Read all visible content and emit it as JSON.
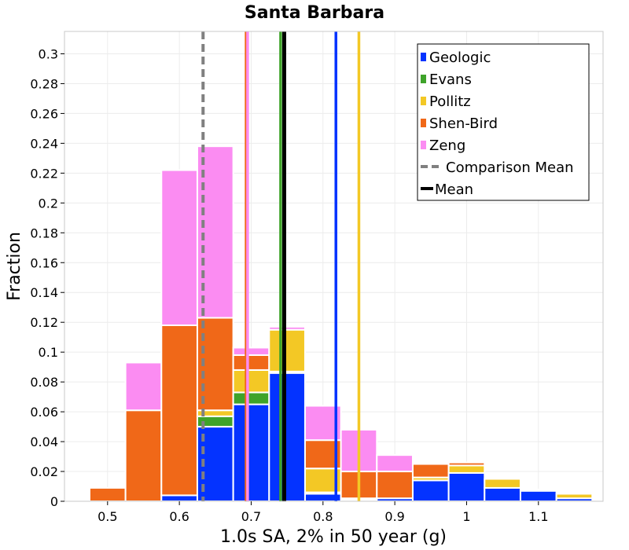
{
  "chart_data": {
    "type": "bar",
    "stacked": true,
    "title": "Santa Barbara",
    "xlabel": "1.0s SA, 2% in 50 year (g)",
    "ylabel": "Fraction",
    "xlim": [
      0.44,
      1.19
    ],
    "ylim": [
      0,
      0.315
    ],
    "x_ticks": [
      0.5,
      0.6,
      0.7,
      0.8,
      0.9,
      1.0,
      1.1
    ],
    "x_tick_labels": [
      "0.5",
      "0.6",
      "0.7",
      "0.8",
      "0.9",
      "1",
      "1.1"
    ],
    "y_ticks": [
      0,
      0.02,
      0.04,
      0.06,
      0.08,
      0.1,
      0.12,
      0.14,
      0.16,
      0.18,
      0.2,
      0.22,
      0.24,
      0.26,
      0.28,
      0.3
    ],
    "y_tick_labels": [
      "0",
      "0.02",
      "0.04",
      "0.06",
      "0.08",
      "0.1",
      "0.12",
      "0.14",
      "0.16",
      "0.18",
      "0.2",
      "0.22",
      "0.24",
      "0.26",
      "0.28",
      "0.3"
    ],
    "grid": true,
    "legend_position": "top-right",
    "bin_width": 0.05,
    "bins": [
      0.5,
      0.55,
      0.6,
      0.65,
      0.7,
      0.75,
      0.8,
      0.85,
      0.9,
      0.95,
      1.0,
      1.05,
      1.1,
      1.15
    ],
    "series": [
      {
        "name": "Geologic",
        "color": "#0433ff",
        "values": [
          0,
          0,
          0.004,
          0.05,
          0.065,
          0.086,
          0.005,
          0.001,
          0.002,
          0.014,
          0.019,
          0.009,
          0.007,
          0.002
        ]
      },
      {
        "name": "Evans",
        "color": "#3fa32a",
        "values": [
          0,
          0,
          0,
          0.007,
          0.008,
          0.001,
          0.001,
          0.001,
          0,
          0,
          0,
          0,
          0,
          0
        ]
      },
      {
        "name": "Pollitz",
        "color": "#f3c825",
        "values": [
          0,
          0,
          0,
          0.004,
          0.015,
          0.028,
          0.016,
          0,
          0,
          0.002,
          0.005,
          0.006,
          0,
          0.003
        ]
      },
      {
        "name": "Shen-Bird",
        "color": "#f06818",
        "values": [
          0.009,
          0.061,
          0.114,
          0.062,
          0.01,
          0,
          0.019,
          0.018,
          0.018,
          0.009,
          0.002,
          0,
          0.001,
          0
        ]
      },
      {
        "name": "Zeng",
        "color": "#fb8cf2",
        "values": [
          0,
          0.032,
          0.104,
          0.115,
          0.005,
          0.002,
          0.023,
          0.028,
          0.011,
          0,
          0,
          0,
          0,
          0
        ]
      }
    ],
    "vertical_lines": [
      {
        "name": "Geologic",
        "x": 0.818,
        "color": "#0433ff",
        "style": "solid"
      },
      {
        "name": "Evans",
        "x": 0.741,
        "color": "#3fa32a",
        "style": "solid"
      },
      {
        "name": "Pollitz",
        "x": 0.85,
        "color": "#f3c825",
        "style": "solid"
      },
      {
        "name": "Shen-Bird",
        "x": 0.693,
        "color": "#f06818",
        "style": "solid"
      },
      {
        "name": "Zeng",
        "x": 0.695,
        "color": "#fb8cf2",
        "style": "solid"
      },
      {
        "name": "Comparison Mean",
        "x": 0.633,
        "color": "#808080",
        "style": "dashed"
      },
      {
        "name": "Mean",
        "x": 0.746,
        "color": "#000000",
        "style": "solid"
      }
    ],
    "legend": [
      {
        "label": "Geologic",
        "color": "#0433ff",
        "kind": "box"
      },
      {
        "label": "Evans",
        "color": "#3fa32a",
        "kind": "box"
      },
      {
        "label": "Pollitz",
        "color": "#f3c825",
        "kind": "box"
      },
      {
        "label": "Shen-Bird",
        "color": "#f06818",
        "kind": "box"
      },
      {
        "label": "Zeng",
        "color": "#fb8cf2",
        "kind": "box"
      },
      {
        "label": "Comparison Mean",
        "color": "#808080",
        "kind": "dashed"
      },
      {
        "label": "Mean",
        "color": "#000000",
        "kind": "line"
      }
    ]
  }
}
